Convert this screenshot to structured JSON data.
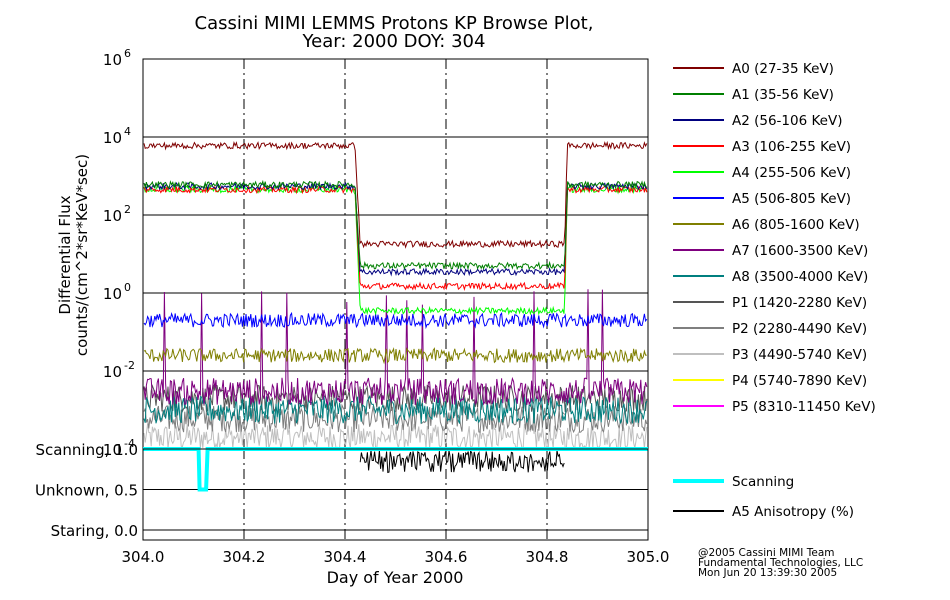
{
  "title": {
    "line1": "Cassini MIMI LEMMS Protons KP Browse Plot,",
    "line2": "Year: 2000 DOY: 304"
  },
  "footer": {
    "line1": "@2005 Cassini MIMI Team",
    "line2": "Fundamental Technologies, LLC",
    "line3": "Mon Jun 20 13:39:30 2005"
  },
  "chart_data": [
    {
      "type": "line",
      "panel": "flux",
      "xlabel": "Day of Year 2000",
      "ylabel_line1": "Differential Flux",
      "ylabel_line2": "counts/(cm^2*sr*KeV*sec)",
      "xlim": [
        304.0,
        305.0
      ],
      "ylim": [
        0.0001,
        1000000.0
      ],
      "yscale": "log",
      "x_ticks": [
        "304.0",
        "304.2",
        "304.4",
        "304.6",
        "304.8",
        "305.0"
      ],
      "y_ticks": [
        {
          "base": "10",
          "exp": "-4",
          "value": 0.0001
        },
        {
          "base": "10",
          "exp": "-2",
          "value": 0.01
        },
        {
          "base": "10",
          "exp": "0",
          "value": 1
        },
        {
          "base": "10",
          "exp": "2",
          "value": 100
        },
        {
          "base": "10",
          "exp": "4",
          "value": 10000
        },
        {
          "base": "10",
          "exp": "6",
          "value": 1000000.0
        }
      ],
      "grid": true,
      "legend_position": "right",
      "series": [
        {
          "name": "A0 (27-35 KeV)",
          "color": "#7f0000",
          "x": [
            304.0,
            304.42,
            304.43,
            304.835,
            304.84,
            305.0
          ],
          "y": [
            6000,
            6000,
            18,
            18,
            6000,
            6000
          ]
        },
        {
          "name": "A1 (35-56 KeV)",
          "color": "#007f00",
          "x": [
            304.0,
            304.42,
            304.43,
            304.835,
            304.84,
            305.0
          ],
          "y": [
            600,
            600,
            5,
            5,
            600,
            600
          ]
        },
        {
          "name": "A2 (56-106 KeV)",
          "color": "#00007f",
          "x": [
            304.0,
            304.42,
            304.43,
            304.835,
            304.84,
            305.0
          ],
          "y": [
            550,
            550,
            3.5,
            3.5,
            550,
            550
          ]
        },
        {
          "name": "A3 (106-255 KeV)",
          "color": "#ff0000",
          "x": [
            304.0,
            304.42,
            304.43,
            304.835,
            304.84,
            305.0
          ],
          "y": [
            450,
            450,
            1.5,
            1.5,
            450,
            450
          ]
        },
        {
          "name": "A4 (255-506 KeV)",
          "color": "#00ff00",
          "x": [
            304.0,
            304.42,
            304.43,
            304.835,
            304.84,
            305.0
          ],
          "y": [
            450,
            450,
            0.35,
            0.35,
            450,
            450
          ]
        },
        {
          "name": "A5 (506-805 KeV)",
          "color": "#0000ff",
          "x": [
            304.0,
            305.0
          ],
          "y": [
            0.2,
            0.2
          ]
        },
        {
          "name": "A6 (805-1600 KeV)",
          "color": "#7f7f00",
          "x": [
            304.0,
            305.0
          ],
          "y": [
            0.025,
            0.025
          ]
        },
        {
          "name": "A7 (1600-3500 KeV)",
          "color": "#7f007f",
          "x": [
            304.0,
            305.0
          ],
          "y": [
            0.003,
            0.003
          ]
        },
        {
          "name": "A8 (3500-4000 KeV)",
          "color": "#007f7f",
          "x": [
            304.0,
            305.0
          ],
          "y": [
            0.001,
            0.001
          ]
        },
        {
          "name": "P1 (1420-2280 KeV)",
          "color": "#555555",
          "x": [
            304.0,
            305.0
          ],
          "y": [
            0.002,
            0.002
          ]
        },
        {
          "name": "P2 (2280-4490 KeV)",
          "color": "#7f7f7f",
          "x": [
            304.0,
            305.0
          ],
          "y": [
            0.0006,
            0.0006
          ]
        },
        {
          "name": "P3 (4490-5740 KeV)",
          "color": "#bfbfbf",
          "x": [
            304.0,
            305.0
          ],
          "y": [
            0.0002,
            0.0002
          ]
        },
        {
          "name": "P4 (5740-7890 KeV)",
          "color": "#ffff00",
          "x": [],
          "y": []
        },
        {
          "name": "P5 (8310-11450 KeV)",
          "color": "#ff00ff",
          "x": [],
          "y": []
        }
      ]
    },
    {
      "type": "line",
      "panel": "scan",
      "xlim": [
        304.0,
        305.0
      ],
      "ylim": [
        0.0,
        1.0
      ],
      "y_ticks": [
        {
          "label": "Scanning, 1.0",
          "value": 1.0
        },
        {
          "label": "Unknown, 0.5",
          "value": 0.5
        },
        {
          "label": "Staring, 0.0",
          "value": 0.0
        }
      ],
      "series": [
        {
          "name": "Scanning",
          "color": "#00ffff",
          "x": [
            304.0,
            304.11,
            304.112,
            304.125,
            304.128,
            305.0
          ],
          "y": [
            1.0,
            1.0,
            0.5,
            0.5,
            1.0,
            1.0
          ]
        },
        {
          "name": "A5 Anisotropy (%)",
          "color": "#000000",
          "x": [
            304.43,
            304.835
          ],
          "y": [
            0.9,
            0.9
          ]
        }
      ]
    }
  ]
}
